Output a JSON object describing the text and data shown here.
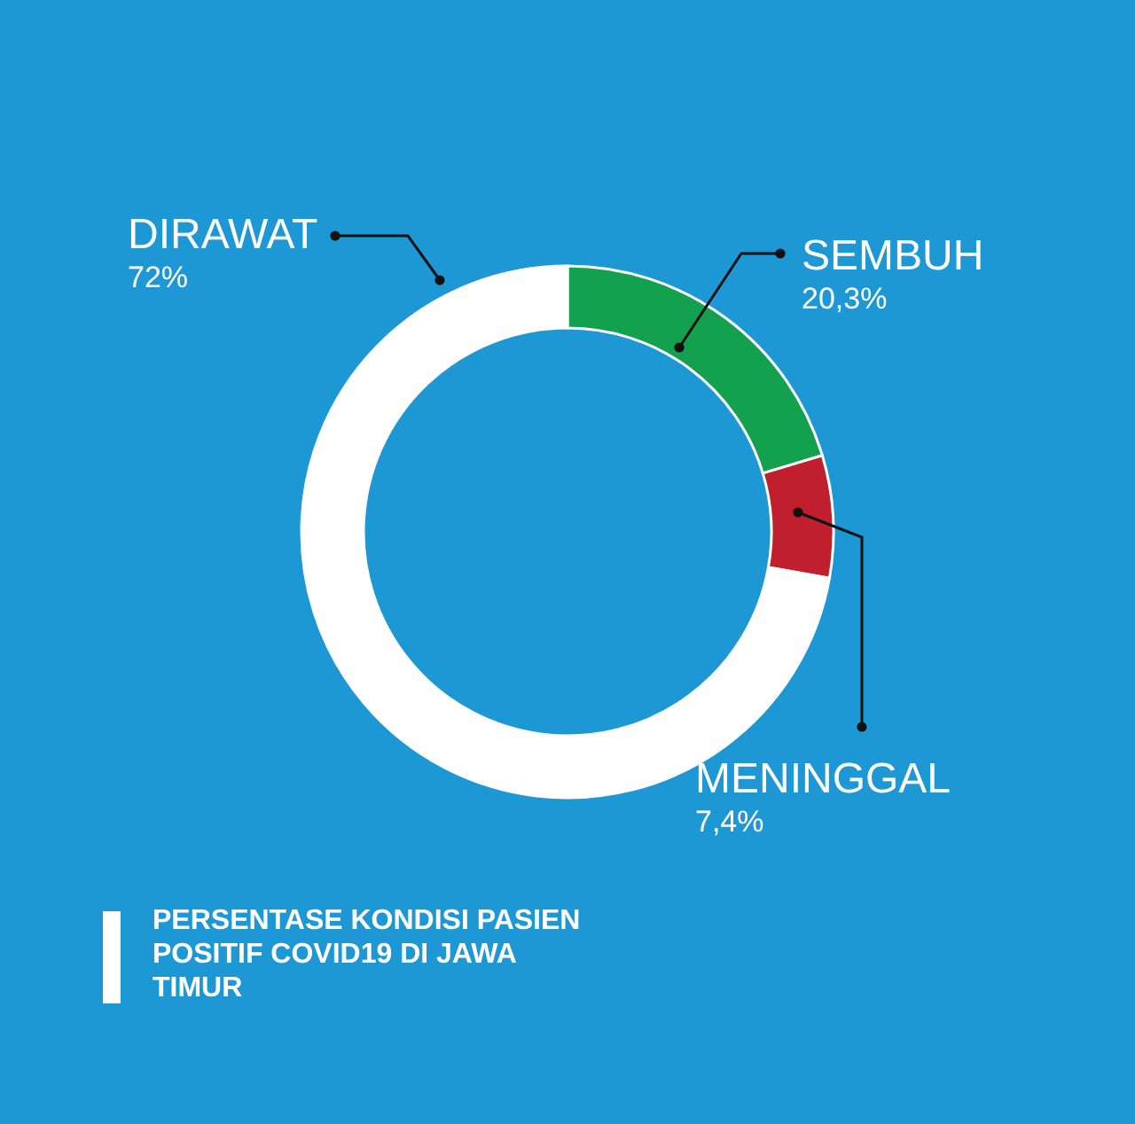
{
  "chart_data": {
    "type": "donut",
    "title": "PERSENTASE KONDISI PASIEN POSITIF COVID19 DI JAWA TIMUR",
    "categories": [
      "SEMBUH",
      "MENINGGAL",
      "DIRAWAT"
    ],
    "values": [
      20.3,
      7.4,
      72
    ],
    "value_labels": [
      "20,3%",
      "7,4%",
      "72%"
    ],
    "colors": [
      "#13a04f",
      "#c01f2e",
      "#ffffff"
    ]
  }
}
